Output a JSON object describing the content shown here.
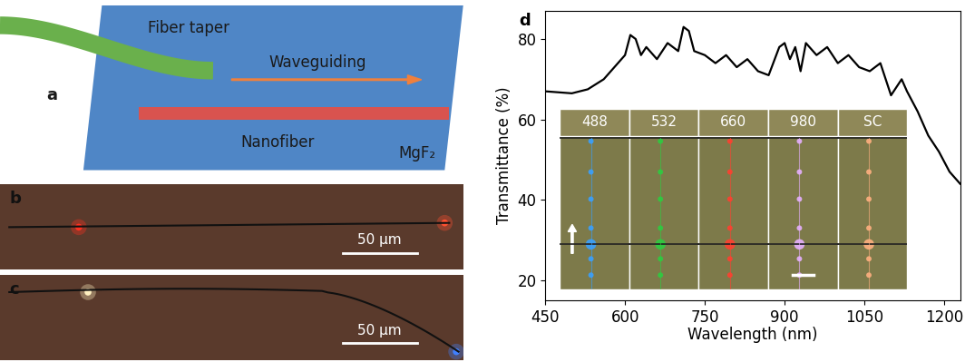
{
  "panels": {
    "a": {
      "label": "a",
      "taper": "Fiber taper",
      "guiding": "Waveguiding",
      "fiber": "Nanofiber",
      "substrate": "MgF₂"
    },
    "b": {
      "label": "b",
      "scale_bar": "50 µm"
    },
    "c": {
      "label": "c",
      "scale_bar": "50 µm"
    },
    "d": {
      "label": "d",
      "inset_labels": [
        "488",
        "532",
        "660",
        "980",
        "SC"
      ]
    }
  },
  "chart_data": {
    "type": "line",
    "x_label": "Wavelength (nm)",
    "y_label": "Transmittance (%)",
    "x": [
      450,
      500,
      530,
      560,
      580,
      600,
      610,
      620,
      630,
      640,
      660,
      680,
      700,
      710,
      720,
      730,
      750,
      770,
      790,
      810,
      830,
      850,
      870,
      890,
      900,
      910,
      920,
      930,
      940,
      960,
      980,
      1000,
      1020,
      1040,
      1060,
      1080,
      1090,
      1100,
      1110,
      1120,
      1130,
      1150,
      1170,
      1190,
      1210,
      1230
    ],
    "values": [
      67,
      66.5,
      67.5,
      70,
      73,
      76,
      81,
      80,
      76,
      78,
      75,
      79,
      77,
      83,
      82,
      77,
      76,
      74,
      76,
      73,
      75,
      72,
      71,
      78,
      79,
      75,
      78,
      72,
      79,
      76,
      78,
      74,
      76,
      73,
      72,
      74,
      70,
      66,
      68,
      70,
      67,
      62,
      56,
      52,
      47,
      44
    ],
    "color": "#000000",
    "xlim": [
      450,
      1230
    ],
    "ylim": [
      15,
      87
    ],
    "xticks": [
      450,
      600,
      750,
      900,
      1050,
      1200
    ],
    "yticks": [
      20,
      40,
      60,
      80
    ]
  }
}
